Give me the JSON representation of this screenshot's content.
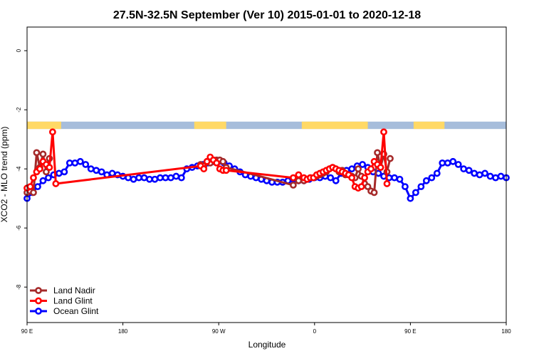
{
  "chart_data": {
    "type": "line",
    "title": "27.5N-32.5N September (Ver 10)   2015-01-01 to 2020-12-18",
    "xlabel": "Longitude",
    "ylabel": "XCO2 - MLO trend (ppm)",
    "xlim": [
      90,
      540
    ],
    "ylim": [
      -9.2,
      0.8
    ],
    "x_ticks": [
      {
        "value": 90,
        "label": "90 E"
      },
      {
        "value": 180,
        "label": "180"
      },
      {
        "value": 270,
        "label": "90 W"
      },
      {
        "value": 360,
        "label": "0"
      },
      {
        "value": 450,
        "label": "90 E"
      },
      {
        "value": 540,
        "label": "180"
      }
    ],
    "y_ticks": [
      {
        "value": 0,
        "label": "0"
      },
      {
        "value": -2,
        "label": "-2"
      },
      {
        "value": -4,
        "label": "-4"
      },
      {
        "value": -6,
        "label": "-6"
      },
      {
        "value": -8,
        "label": "-8"
      }
    ],
    "land_mask": {
      "y_range": [
        -2.65,
        -2.4
      ],
      "land_color": "#FFD966",
      "ocean_color": "#A6BDDB",
      "land_segments": [
        [
          90,
          122
        ],
        [
          247,
          277
        ],
        [
          348,
          410
        ],
        [
          453,
          482
        ]
      ]
    },
    "legend": {
      "position": "bottom-left",
      "entries": [
        "Land Nadir",
        "Land Glint",
        "Ocean Glint"
      ]
    },
    "series": [
      {
        "name": "Ocean Glint",
        "color": "#0000FF",
        "x": [
          90,
          95,
          100,
          105,
          110,
          115,
          120,
          125,
          130,
          135,
          140,
          145,
          150,
          155,
          160,
          165,
          170,
          175,
          180,
          185,
          190,
          195,
          200,
          205,
          210,
          215,
          220,
          225,
          230,
          235,
          240,
          245,
          250,
          255,
          260,
          265,
          270,
          275,
          280,
          285,
          290,
          295,
          300,
          305,
          310,
          315,
          320,
          325,
          330,
          335,
          340,
          345,
          350,
          355,
          360,
          365,
          370,
          375,
          380,
          385,
          390,
          395,
          400,
          405,
          410,
          415,
          420,
          425,
          430,
          435,
          440,
          445,
          450,
          455,
          460,
          465,
          470,
          475,
          480,
          485,
          490,
          495,
          500,
          505,
          510,
          515,
          520,
          525,
          530,
          535,
          540
        ],
        "values": [
          -5.0,
          -4.8,
          -4.6,
          -4.4,
          -4.3,
          -4.2,
          -4.15,
          -4.1,
          -3.8,
          -3.8,
          -3.75,
          -3.85,
          -4.0,
          -4.05,
          -4.1,
          -4.2,
          -4.15,
          -4.2,
          -4.25,
          -4.3,
          -4.35,
          -4.3,
          -4.3,
          -4.35,
          -4.35,
          -4.3,
          -4.3,
          -4.3,
          -4.25,
          -4.3,
          -4.0,
          -3.95,
          -3.9,
          -3.85,
          -3.8,
          -3.75,
          -3.75,
          -3.8,
          -3.9,
          -4.0,
          -4.1,
          -4.2,
          -4.25,
          -4.3,
          -4.35,
          -4.4,
          -4.45,
          -4.45,
          -4.45,
          -4.4,
          -4.35,
          -4.4,
          -4.4,
          -4.35,
          -4.3,
          -4.3,
          -4.25,
          -4.3,
          -4.4,
          -4.15,
          -4.05,
          -4.0,
          -3.9,
          -3.85,
          -3.95,
          -4.1,
          -4.15,
          -4.25,
          -4.3,
          -4.3,
          -4.35,
          -4.6,
          -5.0,
          -4.8,
          -4.6,
          -4.4,
          -4.3,
          -4.15,
          -3.8,
          -3.8,
          -3.75,
          -3.85,
          -4.0,
          -4.05,
          -4.15,
          -4.2,
          -4.15,
          -4.25,
          -4.3,
          -4.25,
          -4.3
        ]
      },
      {
        "name": "Land Nadir",
        "color": "#A52A2A",
        "x": [
          90,
          93,
          96,
          99,
          102,
          105,
          108,
          111,
          114,
          253,
          256,
          259,
          262,
          265,
          268,
          271,
          274,
          277,
          340,
          345,
          350,
          353,
          356,
          359,
          362,
          365,
          368,
          371,
          374,
          377,
          380,
          383,
          386,
          389,
          392,
          395,
          398,
          401,
          404,
          407,
          410,
          413,
          416,
          419,
          422,
          425,
          428,
          431,
          434,
          437,
          440,
          443,
          446,
          449,
          452,
          455,
          458,
          461,
          464,
          467,
          470,
          473,
          476,
          479
        ],
        "values": [
          -4.8,
          -4.75,
          -4.8,
          -3.45,
          -3.95,
          -3.5,
          -4.1,
          -3.65,
          null,
          -3.85,
          -3.9,
          -3.75,
          -3.8,
          -3.7,
          -3.7,
          -3.7,
          -3.75,
          -3.95,
          -4.55,
          -4.4,
          -4.4,
          -4.35,
          -4.3,
          -4.3,
          -4.25,
          -4.2,
          -4.15,
          -4.1,
          -4.0,
          -3.95,
          -4.0,
          -4.1,
          -4.05,
          -4.2,
          -4.2,
          -4.25,
          -4.3,
          -4.0,
          -4.25,
          -4.5,
          -4.6,
          -4.75,
          -4.8,
          -3.45,
          -3.95,
          -3.5,
          -4.1,
          -3.65,
          null,
          null,
          null,
          null,
          null,
          null,
          null,
          null,
          null,
          null,
          null,
          null,
          null,
          null,
          null,
          null
        ],
        "x_note_removed": true
      },
      {
        "name": "Land Glint",
        "color": "#FF0000",
        "x": [
          90,
          93,
          96,
          99,
          102,
          105,
          108,
          111,
          114,
          117,
          253,
          256,
          259,
          262,
          265,
          268,
          271,
          274,
          277,
          340,
          345,
          350,
          353,
          356,
          359,
          362,
          365,
          368,
          371,
          374,
          377,
          380,
          383,
          386,
          389,
          392,
          395,
          398,
          401,
          404,
          407,
          410,
          413,
          416,
          419,
          422,
          425,
          428,
          431,
          434,
          437,
          440,
          443,
          446
        ],
        "values": [
          -4.65,
          -4.6,
          -4.3,
          -4.1,
          -4.0,
          -3.75,
          -3.85,
          -3.95,
          -2.75,
          -4.5,
          -3.9,
          -4.0,
          -3.75,
          -3.6,
          -3.7,
          -3.8,
          -4.0,
          -4.05,
          -4.05,
          -4.3,
          -4.2,
          -4.3,
          -4.35,
          -4.3,
          -4.3,
          -4.2,
          -4.15,
          -4.1,
          -4.05,
          -4.0,
          -3.95,
          -4.0,
          -4.05,
          -4.1,
          -4.15,
          -4.2,
          -4.3,
          -4.6,
          -4.65,
          -4.6,
          -4.3,
          -4.1,
          -4.0,
          -3.75,
          -3.85,
          -3.95,
          -2.75,
          -4.5,
          null,
          null,
          null,
          null,
          null,
          null
        ]
      }
    ]
  }
}
